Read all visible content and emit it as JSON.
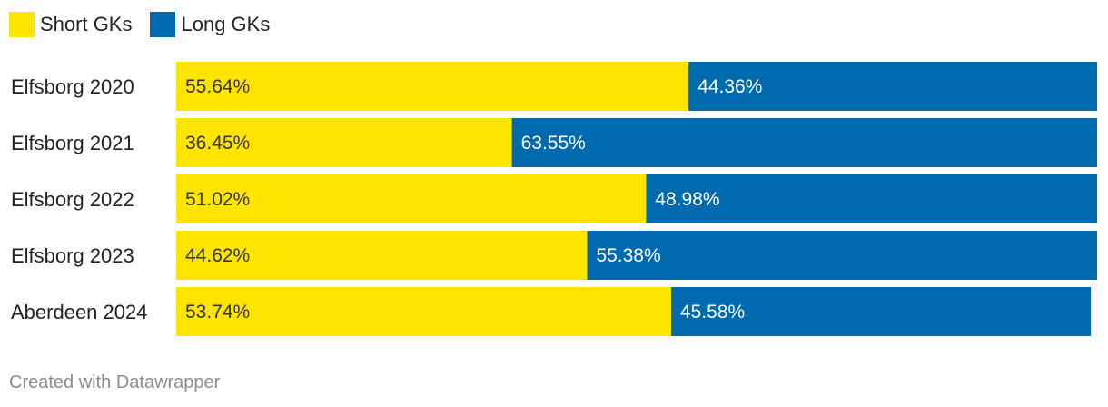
{
  "colors": {
    "short": "#FFE400",
    "long": "#006AAE",
    "short_text": "#333333",
    "long_text": "#ffffff"
  },
  "legend": {
    "short_label": "Short GKs",
    "long_label": "Long GKs"
  },
  "footer": {
    "credit": "Created with Datawrapper"
  },
  "chart_data": {
    "type": "bar",
    "orientation": "horizontal",
    "stacked": true,
    "categories": [
      "Elfsborg 2020",
      "Elfsborg 2021",
      "Elfsborg 2022",
      "Elfsborg 2023",
      "Aberdeen 2024"
    ],
    "series": [
      {
        "name": "Short GKs",
        "values": [
          55.64,
          36.45,
          51.02,
          44.62,
          53.74
        ]
      },
      {
        "name": "Long GKs",
        "values": [
          44.36,
          63.55,
          48.98,
          55.38,
          45.58
        ]
      }
    ],
    "value_labels": [
      [
        "55.64%",
        "36.45%",
        "51.02%",
        "44.62%",
        "53.74%"
      ],
      [
        "44.36%",
        "63.55%",
        "48.98%",
        "55.38%",
        "45.58%"
      ]
    ],
    "xlim": [
      0,
      100
    ],
    "unit": "%",
    "legend_position": "top-left",
    "grid": false
  }
}
